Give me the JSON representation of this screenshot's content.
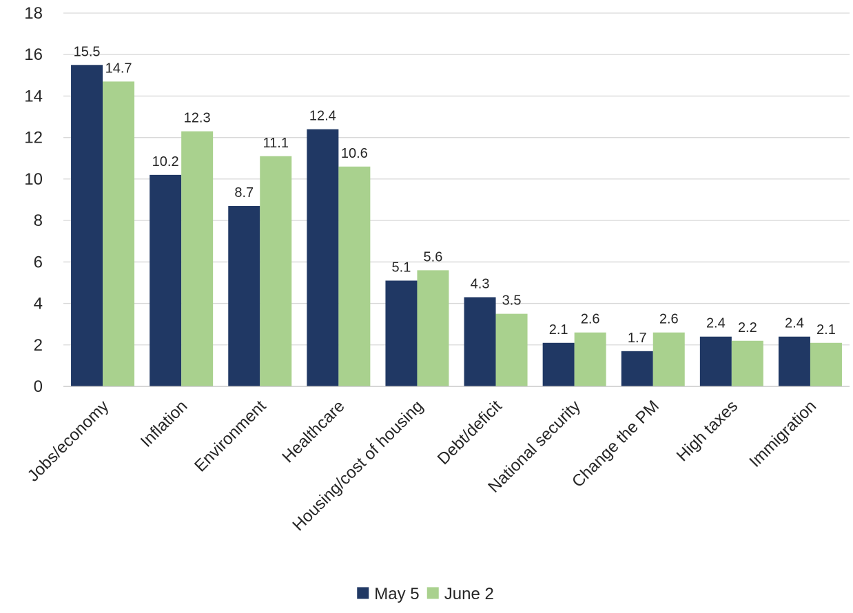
{
  "chart_data": {
    "type": "bar",
    "title": "",
    "xlabel": "",
    "ylabel": "",
    "ylim": [
      0,
      18
    ],
    "yticks": [
      0,
      2,
      4,
      6,
      8,
      10,
      12,
      14,
      16,
      18
    ],
    "grid": true,
    "legend_position": "bottom",
    "categories": [
      "Jobs/economy",
      "Inflation",
      "Environment",
      "Healthcare",
      "Housing/cost of housing",
      "Debt/deficit",
      "National security",
      "Change the PM",
      "High taxes",
      "Immigration"
    ],
    "series": [
      {
        "name": "May 5",
        "color": "#203864",
        "values": [
          15.5,
          10.2,
          8.7,
          12.4,
          5.1,
          4.3,
          2.1,
          1.7,
          2.4,
          2.4
        ]
      },
      {
        "name": "June 2",
        "color": "#a9d18e",
        "values": [
          14.7,
          12.3,
          11.1,
          10.6,
          5.6,
          3.5,
          2.6,
          2.6,
          2.2,
          2.1
        ]
      }
    ]
  }
}
